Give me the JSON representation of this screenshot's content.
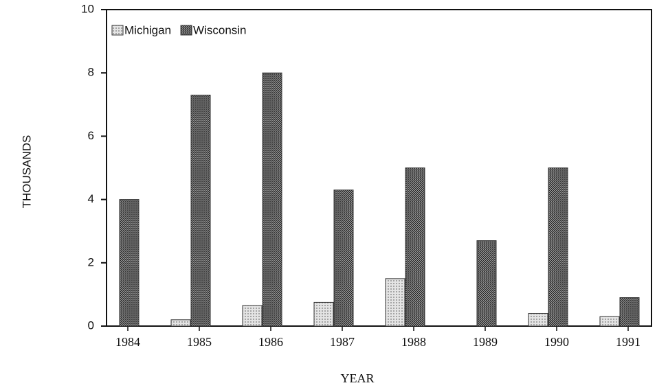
{
  "chart_data": {
    "type": "bar",
    "categories": [
      "1984",
      "1985",
      "1986",
      "1987",
      "1988",
      "1989",
      "1990",
      "1991"
    ],
    "series": [
      {
        "name": "Michigan",
        "color": "#b8b8b8",
        "values": [
          0,
          0.2,
          0.65,
          0.75,
          1.5,
          0,
          0.4,
          0.3
        ]
      },
      {
        "name": "Wisconsin",
        "color": "#7a7a7a",
        "values": [
          4.0,
          7.3,
          8.0,
          4.3,
          5.0,
          2.7,
          5.0,
          0.9
        ]
      }
    ],
    "xlabel": "YEAR",
    "ylabel": "THOUSANDS",
    "ylim": [
      0,
      10
    ],
    "yticks": [
      0,
      2,
      4,
      6,
      8,
      10
    ],
    "legend": "top-left",
    "grid": false
  }
}
